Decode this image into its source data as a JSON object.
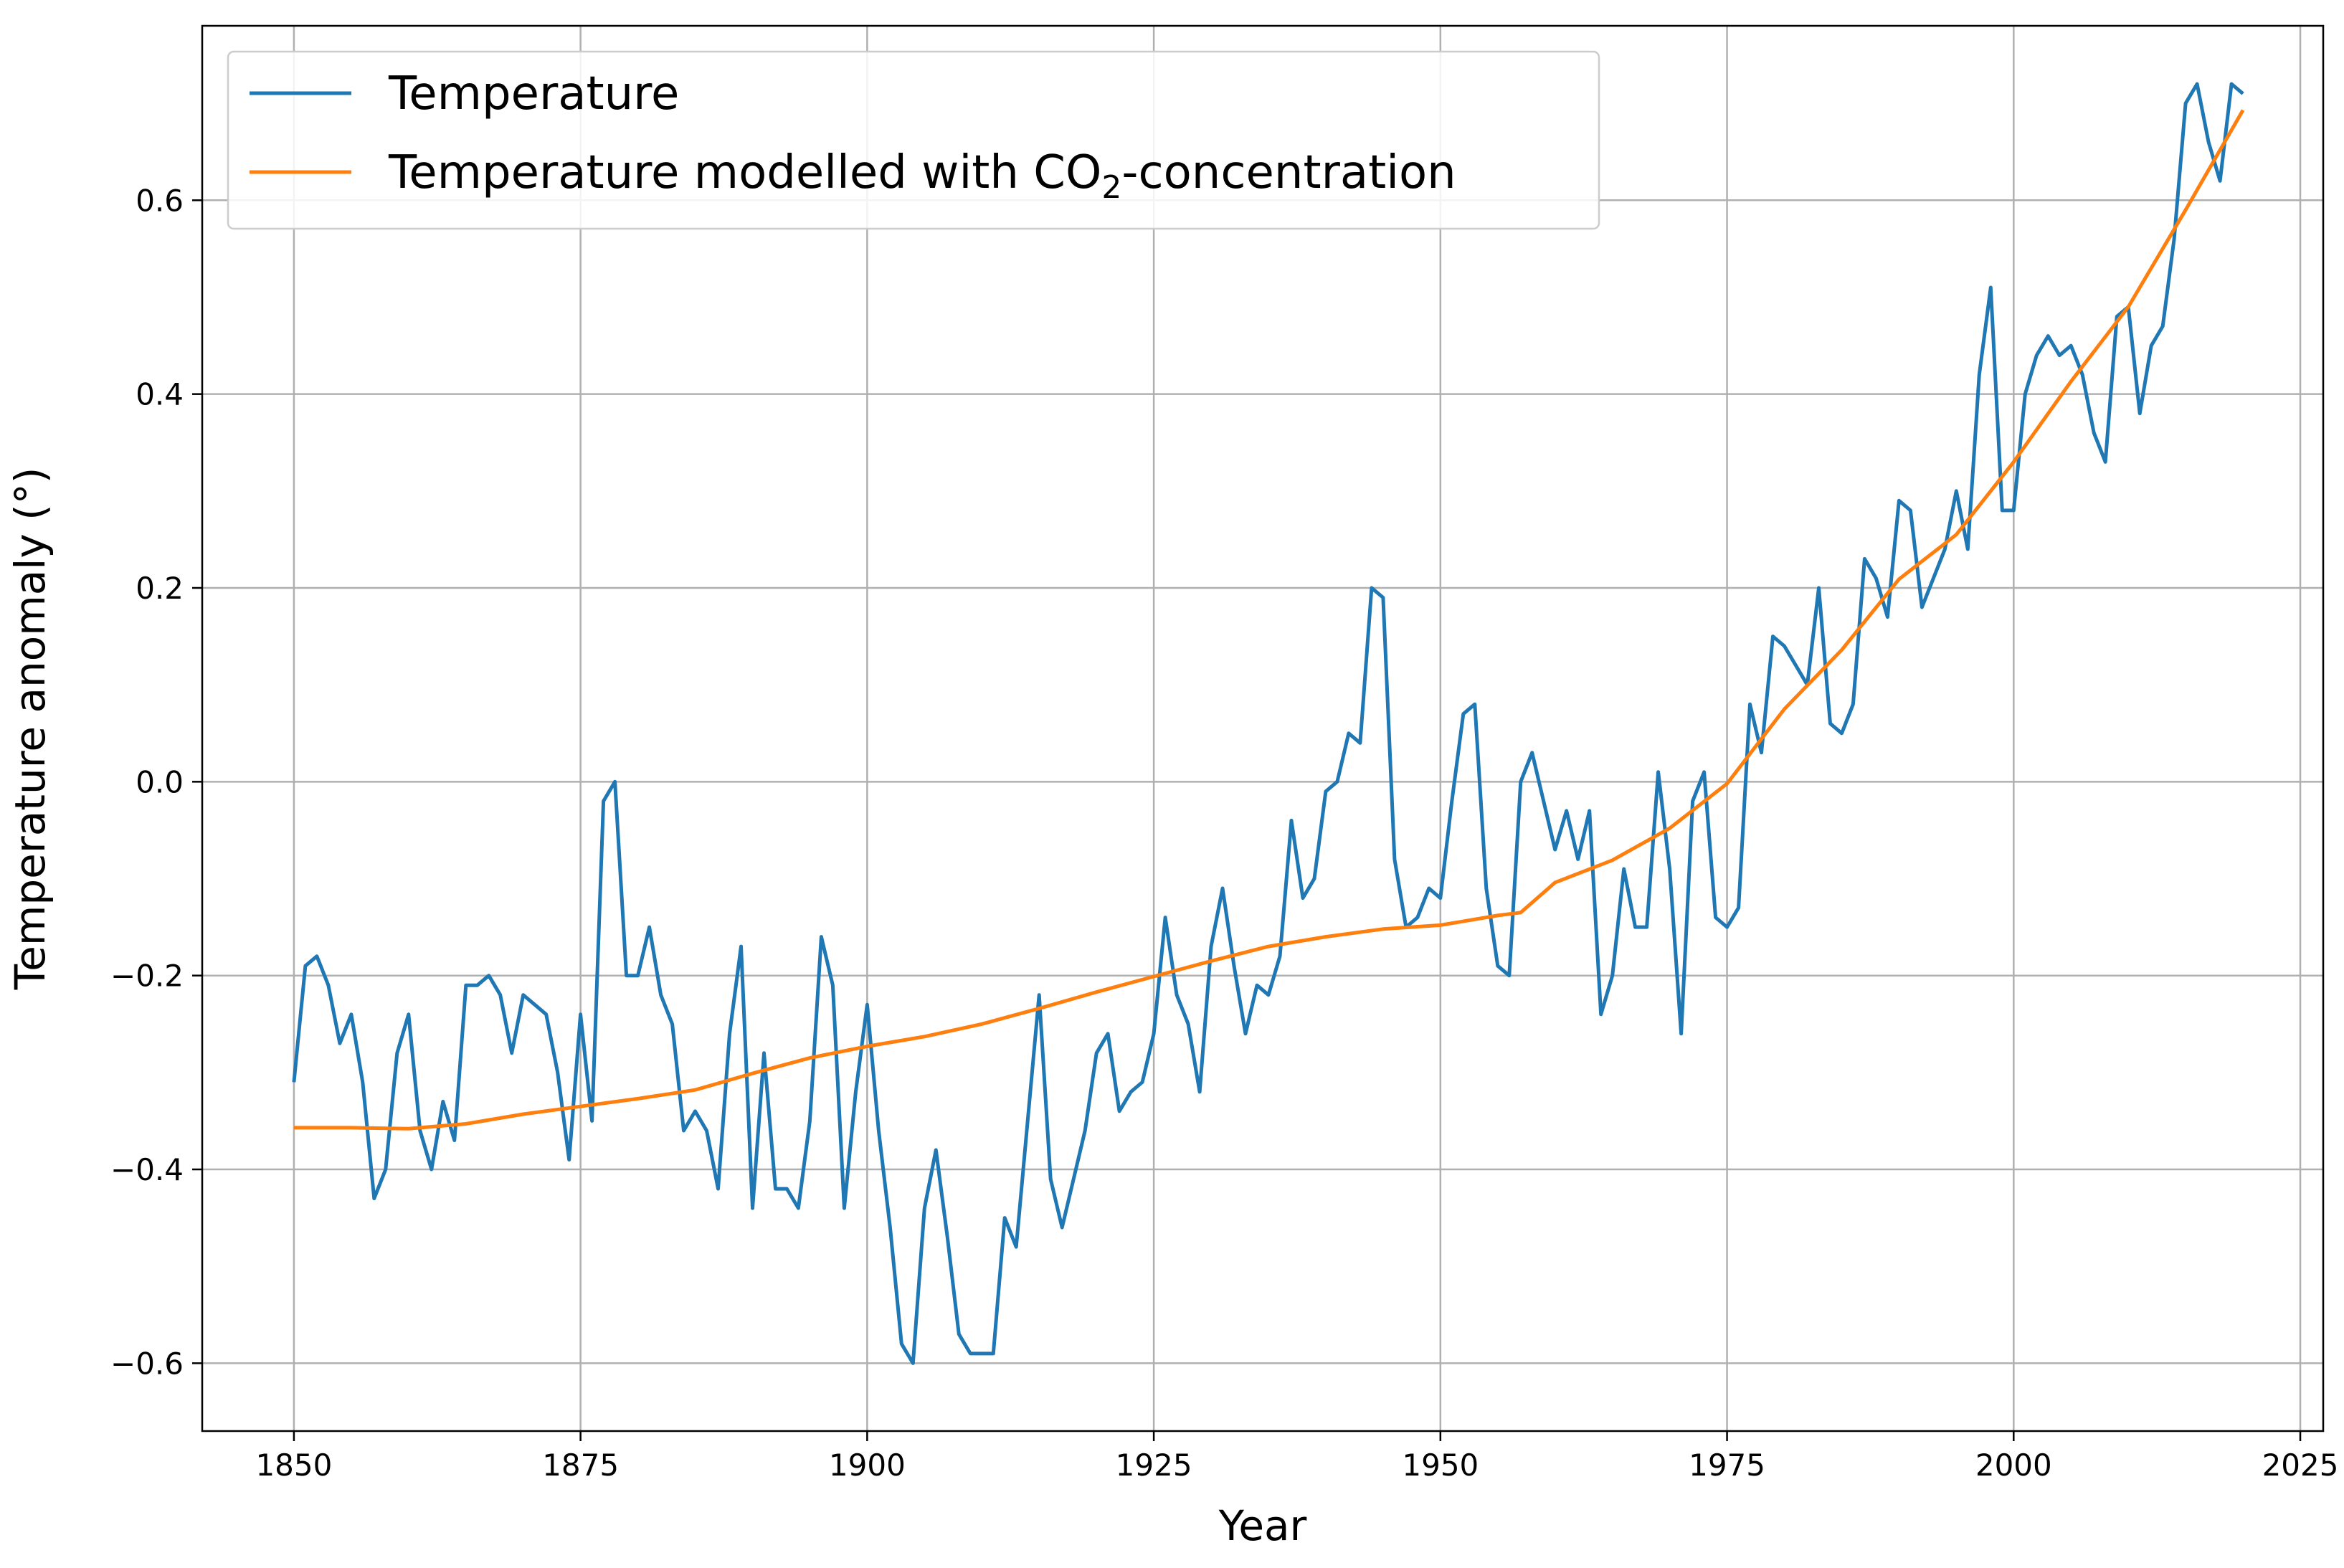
{
  "chart_data": {
    "type": "line",
    "title": "",
    "xlabel": "Year",
    "ylabel": "Temperature anomaly (°)",
    "xlim": [
      1842,
      2027
    ],
    "ylim": [
      -0.67,
      0.78
    ],
    "x_ticks": [
      1850,
      1875,
      1900,
      1925,
      1950,
      1975,
      2000,
      2025
    ],
    "y_ticks": [
      -0.6,
      -0.4,
      -0.2,
      0.0,
      0.2,
      0.4,
      0.6
    ],
    "x_tick_labels": [
      "1850",
      "1875",
      "1900",
      "1925",
      "1950",
      "1975",
      "2000",
      "2025"
    ],
    "y_tick_labels": [
      "−0.6",
      "−0.4",
      "−0.2",
      "0.0",
      "0.2",
      "0.4",
      "0.6"
    ],
    "grid": true,
    "legend_position": "top-left",
    "legend": {
      "temperature": "Temperature",
      "model_prefix": "Temperature modelled with CO",
      "model_subscript": "2",
      "model_suffix": "-concentration"
    },
    "series": [
      {
        "name": "Temperature",
        "color": "#1f77b4",
        "x": [
          1850,
          1851,
          1852,
          1853,
          1854,
          1855,
          1856,
          1857,
          1858,
          1859,
          1860,
          1861,
          1862,
          1863,
          1864,
          1865,
          1866,
          1867,
          1868,
          1869,
          1870,
          1871,
          1872,
          1873,
          1874,
          1875,
          1876,
          1877,
          1878,
          1879,
          1880,
          1881,
          1882,
          1883,
          1884,
          1885,
          1886,
          1887,
          1888,
          1889,
          1890,
          1891,
          1892,
          1893,
          1894,
          1895,
          1896,
          1897,
          1898,
          1899,
          1900,
          1901,
          1902,
          1903,
          1904,
          1905,
          1906,
          1907,
          1908,
          1909,
          1910,
          1911,
          1912,
          1913,
          1914,
          1915,
          1916,
          1917,
          1918,
          1919,
          1920,
          1921,
          1922,
          1923,
          1924,
          1925,
          1926,
          1927,
          1928,
          1929,
          1930,
          1931,
          1932,
          1933,
          1934,
          1935,
          1936,
          1937,
          1938,
          1939,
          1940,
          1941,
          1942,
          1943,
          1944,
          1945,
          1946,
          1947,
          1948,
          1949,
          1950,
          1951,
          1952,
          1953,
          1954,
          1955,
          1956,
          1957,
          1958,
          1959,
          1960,
          1961,
          1962,
          1963,
          1964,
          1965,
          1966,
          1967,
          1968,
          1969,
          1970,
          1971,
          1972,
          1973,
          1974,
          1975,
          1976,
          1977,
          1978,
          1979,
          1980,
          1981,
          1982,
          1983,
          1984,
          1985,
          1986,
          1987,
          1988,
          1989,
          1990,
          1991,
          1992,
          1993,
          1994,
          1995,
          1996,
          1997,
          1998,
          1999,
          2000,
          2001,
          2002,
          2003,
          2004,
          2005,
          2006,
          2007,
          2008,
          2009,
          2010,
          2011,
          2012,
          2013,
          2014,
          2015,
          2016,
          2017,
          2018,
          2019,
          2020
        ],
        "y": [
          -0.31,
          -0.19,
          -0.18,
          -0.21,
          -0.27,
          -0.24,
          -0.31,
          -0.43,
          -0.4,
          -0.28,
          -0.24,
          -0.36,
          -0.4,
          -0.33,
          -0.37,
          -0.21,
          -0.21,
          -0.2,
          -0.22,
          -0.28,
          -0.22,
          -0.23,
          -0.24,
          -0.3,
          -0.39,
          -0.24,
          -0.35,
          -0.02,
          0.0,
          -0.2,
          -0.2,
          -0.15,
          -0.22,
          -0.25,
          -0.36,
          -0.34,
          -0.36,
          -0.42,
          -0.26,
          -0.17,
          -0.44,
          -0.28,
          -0.42,
          -0.42,
          -0.44,
          -0.35,
          -0.16,
          -0.21,
          -0.44,
          -0.32,
          -0.23,
          -0.36,
          -0.46,
          -0.58,
          -0.6,
          -0.44,
          -0.38,
          -0.47,
          -0.57,
          -0.59,
          -0.59,
          -0.59,
          -0.45,
          -0.48,
          -0.35,
          -0.22,
          -0.41,
          -0.46,
          -0.41,
          -0.36,
          -0.28,
          -0.26,
          -0.34,
          -0.32,
          -0.31,
          -0.26,
          -0.14,
          -0.22,
          -0.25,
          -0.32,
          -0.17,
          -0.11,
          -0.19,
          -0.26,
          -0.21,
          -0.22,
          -0.18,
          -0.04,
          -0.12,
          -0.1,
          -0.01,
          0.0,
          0.05,
          0.04,
          0.2,
          0.19,
          -0.08,
          -0.15,
          -0.14,
          -0.11,
          -0.12,
          -0.02,
          0.07,
          0.08,
          -0.11,
          -0.19,
          -0.2,
          0.0,
          0.03,
          -0.02,
          -0.07,
          -0.03,
          -0.08,
          -0.03,
          -0.24,
          -0.2,
          -0.09,
          -0.15,
          -0.15,
          0.01,
          -0.09,
          -0.26,
          -0.02,
          0.01,
          -0.14,
          -0.15,
          -0.13,
          0.08,
          0.03,
          0.15,
          0.14,
          0.12,
          0.1,
          0.2,
          0.06,
          0.05,
          0.08,
          0.23,
          0.21,
          0.17,
          0.29,
          0.28,
          0.18,
          0.21,
          0.24,
          0.3,
          0.24,
          0.42,
          0.51,
          0.28,
          0.28,
          0.4,
          0.44,
          0.46,
          0.44,
          0.45,
          0.42,
          0.36,
          0.33,
          0.48,
          0.49,
          0.38,
          0.45,
          0.47,
          0.56,
          0.7,
          0.72,
          0.66,
          0.62,
          0.72,
          0.71
        ]
      },
      {
        "name": "Temperature modelled with CO2-concentration",
        "color": "#ff7f0e",
        "x": [
          1850,
          1855,
          1860,
          1865,
          1870,
          1875,
          1880,
          1885,
          1890,
          1895,
          1900,
          1905,
          1910,
          1915,
          1920,
          1925,
          1930,
          1935,
          1940,
          1945,
          1950,
          1955,
          1957,
          1960,
          1965,
          1970,
          1975,
          1980,
          1985,
          1990,
          1995,
          2000,
          2005,
          2010,
          2015,
          2020
        ],
        "y": [
          -0.357,
          -0.357,
          -0.358,
          -0.353,
          -0.343,
          -0.335,
          -0.327,
          -0.318,
          -0.301,
          -0.285,
          -0.273,
          -0.263,
          -0.25,
          -0.234,
          -0.217,
          -0.201,
          -0.185,
          -0.17,
          -0.16,
          -0.152,
          -0.148,
          -0.138,
          -0.135,
          -0.104,
          -0.081,
          -0.048,
          -0.002,
          0.075,
          0.136,
          0.209,
          0.255,
          0.33,
          0.413,
          0.49,
          0.59,
          0.693
        ]
      }
    ]
  }
}
